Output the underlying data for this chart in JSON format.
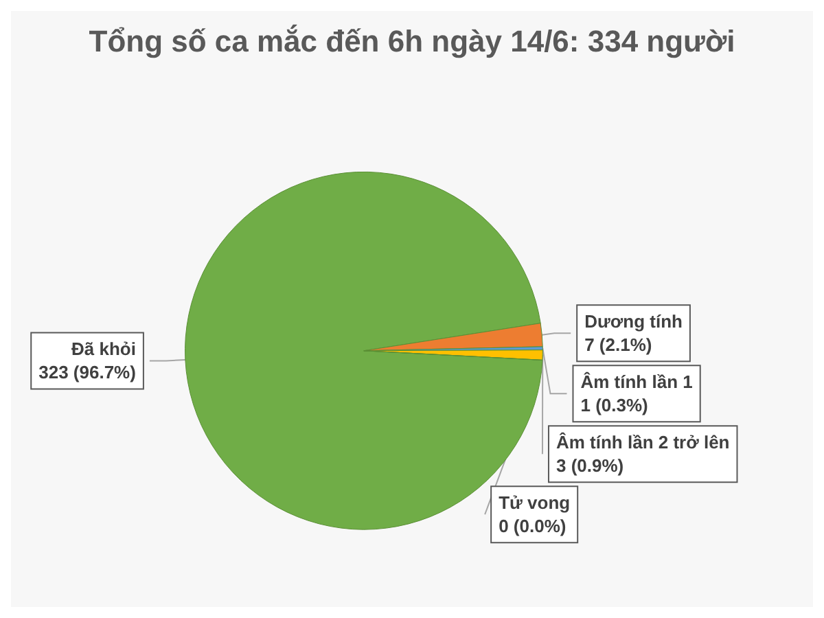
{
  "chart_data": {
    "type": "pie",
    "title": "Tổng số ca mắc đến 6h ngày 14/6: 334 người",
    "categories": [
      "Đã khỏi",
      "Dương tính",
      "Âm tính lần 1",
      "Âm tính lần 2 trở lên",
      "Tử vong"
    ],
    "values": [
      323,
      7,
      1,
      3,
      0
    ],
    "value_labels": [
      "323 (96.7%)",
      "7 (2.1%)",
      "1 (0.3%)",
      "3 (0.9%)",
      "0 (0.0%)"
    ],
    "colors": [
      "#70ad47",
      "#ed7d31",
      "#5b9bd5",
      "#ffc000",
      "#7f7f7f"
    ],
    "legend": false
  }
}
